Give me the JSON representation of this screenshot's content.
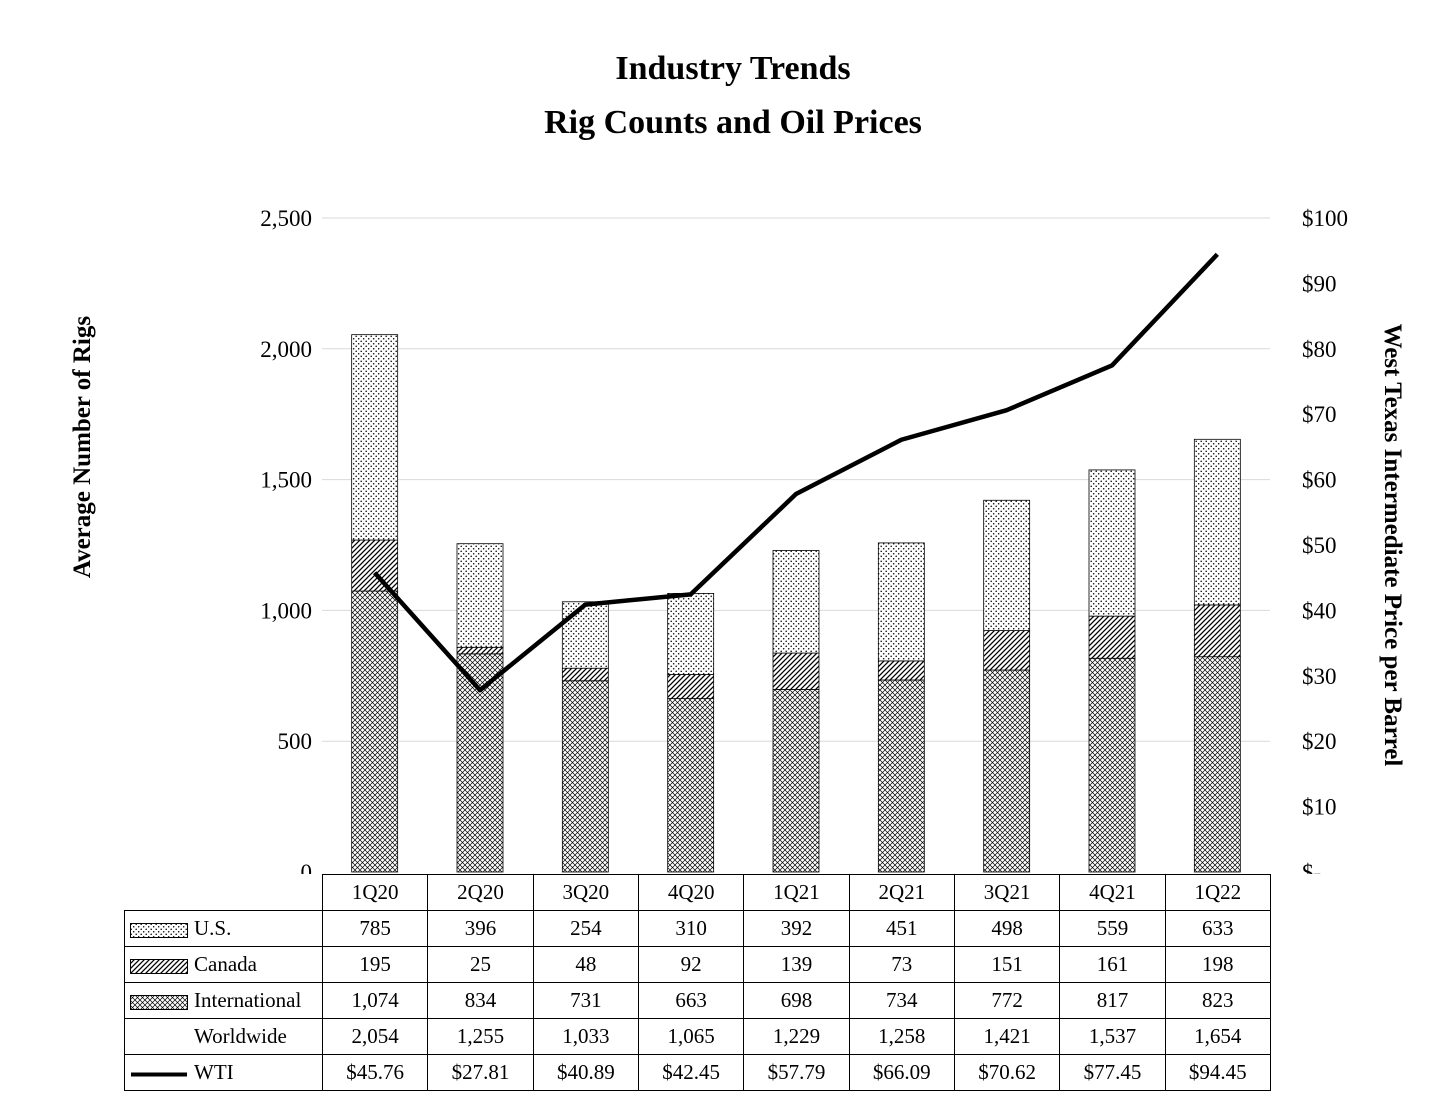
{
  "title": {
    "line1": "Industry Trends",
    "line2": "Rig Counts and Oil Prices"
  },
  "left_axis": {
    "title": "Average Number of Rigs",
    "ticks": [
      "0",
      "500",
      "1,000",
      "1,500",
      "2,000",
      "2,500"
    ],
    "tick_step": 500,
    "range": [
      0,
      2500
    ]
  },
  "right_axis": {
    "title": "West Texas Intermediate Price per Barrel",
    "ticks": [
      "$-",
      "$10",
      "$20",
      "$30",
      "$40",
      "$50",
      "$60",
      "$70",
      "$80",
      "$90",
      "$100"
    ],
    "tick_step": 10,
    "range": [
      0,
      100
    ]
  },
  "chart_data": {
    "type": "bar+line",
    "categories": [
      "1Q20",
      "2Q20",
      "3Q20",
      "4Q20",
      "1Q21",
      "2Q21",
      "3Q21",
      "4Q21",
      "1Q22"
    ],
    "series": [
      {
        "name": "U.S.",
        "pattern": "dots",
        "values": [
          785,
          396,
          254,
          310,
          392,
          451,
          498,
          559,
          633
        ]
      },
      {
        "name": "Canada",
        "pattern": "diagonal",
        "values": [
          195,
          25,
          48,
          92,
          139,
          73,
          151,
          161,
          198
        ]
      },
      {
        "name": "International",
        "pattern": "crosshatch",
        "values": [
          1074,
          834,
          731,
          663,
          698,
          734,
          772,
          817,
          823
        ]
      }
    ],
    "stack_order": [
      "International",
      "Canada",
      "U.S."
    ],
    "totals": {
      "name": "Worldwide",
      "values": [
        2054,
        1255,
        1033,
        1065,
        1229,
        1258,
        1421,
        1537,
        1654
      ]
    },
    "line_series": {
      "name": "WTI",
      "axis": "right",
      "values": [
        45.76,
        27.81,
        40.89,
        42.45,
        57.79,
        66.09,
        70.62,
        77.45,
        94.45
      ]
    },
    "left_ylim": [
      0,
      2500
    ],
    "right_ylim": [
      0,
      100
    ],
    "grid": "horizontal",
    "legend_position": "table-left"
  },
  "table": {
    "rows": [
      {
        "label": "U.S.",
        "swatch": "dots",
        "values": [
          "785",
          "396",
          "254",
          "310",
          "392",
          "451",
          "498",
          "559",
          "633"
        ]
      },
      {
        "label": "Canada",
        "swatch": "diagonal",
        "values": [
          "195",
          "25",
          "48",
          "92",
          "139",
          "73",
          "151",
          "161",
          "198"
        ]
      },
      {
        "label": "International",
        "swatch": "crosshatch",
        "values": [
          "1,074",
          "834",
          "731",
          "663",
          "698",
          "734",
          "772",
          "817",
          "823"
        ]
      },
      {
        "label": "Worldwide",
        "swatch": "none",
        "values": [
          "2,054",
          "1,255",
          "1,033",
          "1,065",
          "1,229",
          "1,258",
          "1,421",
          "1,537",
          "1,654"
        ]
      },
      {
        "label": "WTI",
        "swatch": "line",
        "values": [
          "$45.76",
          "$27.81",
          "$40.89",
          "$42.45",
          "$57.79",
          "$66.09",
          "$70.62",
          "$77.45",
          "$94.45"
        ]
      }
    ]
  },
  "colors": {
    "background": "#ffffff",
    "bar_outline": "#000000",
    "pattern_ink": "#000000",
    "wti_line": "#000000",
    "gridline": "#d9d9d9",
    "text": "#000000",
    "table_border": "#000000"
  }
}
